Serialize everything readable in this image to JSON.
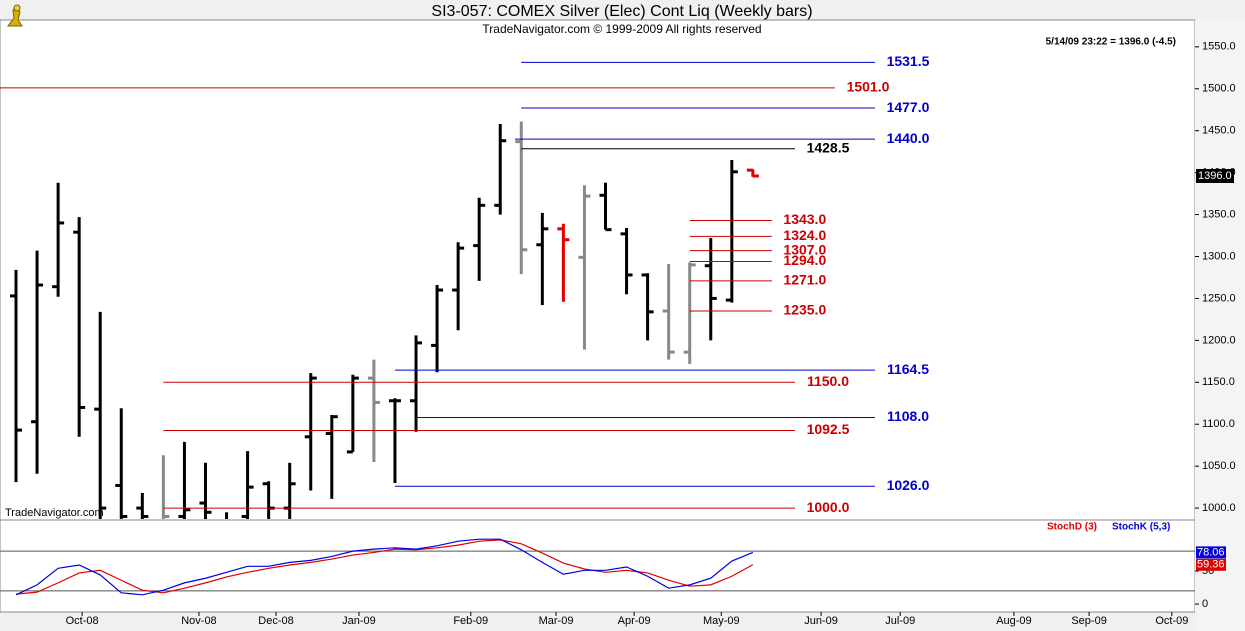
{
  "chart_data": [
    {
      "type": "ohlc",
      "title": "SI3-057:  COMEX Silver (Elec) Cont Liq  (Weekly bars)",
      "subtitle": "TradeNavigator.com © 1999-2009 All rights reserved",
      "status": "5/14/09 23:22 = 1396.0 (-4.5)",
      "watermark": "TradeNavigator.com",
      "last_price": {
        "value": 1396,
        "label": "1396.0"
      },
      "open": [
        1253,
        1103,
        1264,
        1329,
        1118,
        1027,
        1000,
        980,
        990,
        1006,
        980,
        990,
        1029,
        1000,
        1085,
        1089,
        1067,
        1155,
        1128,
        1128,
        1194,
        1260,
        1313,
        1361,
        1437,
        1314,
        1333,
        1299,
        1373,
        1327,
        1278,
        1235,
        1186,
        1289,
        1248,
        1403
      ],
      "high": [
        1284,
        1307,
        1388,
        1347,
        1234,
        1119,
        1018,
        1063,
        1079,
        1054,
        995,
        1068,
        1032,
        1054,
        1161,
        1111,
        1159,
        1177,
        1131,
        1206,
        1266,
        1317,
        1370,
        1458,
        1461,
        1352,
        1339,
        1385,
        1388,
        1334,
        1280,
        1291,
        1293,
        1322,
        1415,
        1404
      ],
      "low": [
        1031,
        1041,
        1252,
        1085,
        985,
        970,
        960,
        960,
        960,
        965,
        950,
        970,
        975,
        980,
        1021,
        1011,
        1067,
        1055,
        1030,
        1091,
        1162,
        1212,
        1271,
        1350,
        1279,
        1242,
        1246,
        1189,
        1332,
        1255,
        1200,
        1177,
        1172,
        1200,
        1245,
        1395
      ],
      "close": [
        1093,
        1266,
        1340,
        1120,
        1000,
        990,
        990,
        990,
        998,
        995,
        970,
        1025,
        1000,
        1029,
        1155,
        1109,
        1155,
        1126,
        1128,
        1197,
        1260,
        1310,
        1361,
        1438,
        1308,
        1333,
        1320,
        1372,
        1332,
        1278,
        1234,
        1186,
        1290,
        1250,
        1401,
        1396
      ],
      "colors": [
        "#000",
        "#000",
        "#000",
        "#000",
        "#000",
        "#000",
        "#000",
        "#888",
        "#000",
        "#000",
        "#000",
        "#000",
        "#000",
        "#000",
        "#000",
        "#000",
        "#000",
        "#888",
        "#000",
        "#000",
        "#000",
        "#000",
        "#000",
        "#000",
        "#888",
        "#000",
        "#e00000",
        "#888",
        "#000",
        "#000",
        "#000",
        "#888",
        "#888",
        "#000",
        "#000",
        "#e00000"
      ],
      "levels": [
        {
          "value": 1531.5,
          "label": "1531.5",
          "color": "#0000cc",
          "start": 24,
          "end": 40.8
        },
        {
          "value": 1501.0,
          "label": "1501.0",
          "color": "#cc0000",
          "start": -0.76,
          "end": 38.9
        },
        {
          "value": 1477.0,
          "label": "1477.0",
          "color": "#0000cc",
          "start": 24,
          "end": 40.8
        },
        {
          "value": 1440.0,
          "label": "1440.0",
          "color": "#0000cc",
          "start": 23.7,
          "end": 40.8
        },
        {
          "value": 1428.5,
          "label": "1428.5",
          "color": "#000000",
          "start": 24,
          "end": 37
        },
        {
          "value": 1343.0,
          "label": "1343.0",
          "color": "#cc0000",
          "start": 32,
          "end": 35.9
        },
        {
          "value": 1324.0,
          "label": "1324.0",
          "color": "#cc0000",
          "start": 32,
          "end": 35.9
        },
        {
          "value": 1307.0,
          "label": "1307.0",
          "color": "#cc0000",
          "start": 32,
          "end": 35.9
        },
        {
          "value": 1294.0,
          "label": "1294.0",
          "color": "#cc0000",
          "start": 32,
          "end": 35.9
        },
        {
          "value": 1271.0,
          "label": "1271.0",
          "color": "#cc0000",
          "start": 32,
          "end": 35.9
        },
        {
          "value": 1235.0,
          "label": "1235.0",
          "color": "#cc0000",
          "start": 32,
          "end": 35.9
        },
        {
          "value": 1164.5,
          "label": "1164.5",
          "color": "#0000cc",
          "start": 18,
          "end": 40.8
        },
        {
          "value": 1150.0,
          "label": "1150.0",
          "color": "#cc0000",
          "start": 7,
          "end": 37
        },
        {
          "value": 1108.0,
          "label": "1108.0",
          "color": "#0000cc",
          "start": 19,
          "end": 40.8
        },
        {
          "value": 1092.5,
          "label": "1092.5",
          "color": "#cc0000",
          "start": 7,
          "end": 37
        },
        {
          "value": 1026.0,
          "label": "1026.0",
          "color": "#0000cc",
          "start": 18,
          "end": 40.8
        },
        {
          "value": 1000.0,
          "label": "1000.0",
          "color": "#cc0000",
          "start": 7,
          "end": 37
        }
      ],
      "xlim": [
        -0.76,
        56.0
      ],
      "xticks": [
        {
          "value": 3.14,
          "label": "Oct-08"
        },
        {
          "value": 8.69,
          "label": "Nov-08"
        },
        {
          "value": 12.35,
          "label": "Dec-08"
        },
        {
          "value": 16.29,
          "label": "Jan-09"
        },
        {
          "value": 21.6,
          "label": "Feb-09"
        },
        {
          "value": 25.65,
          "label": "Mar-09"
        },
        {
          "value": 29.36,
          "label": "Apr-09"
        },
        {
          "value": 33.5,
          "label": "May-09"
        },
        {
          "value": 38.24,
          "label": "Jun-09"
        },
        {
          "value": 42,
          "label": "Jul-09"
        },
        {
          "value": 47.4,
          "label": "Aug-09"
        },
        {
          "value": 50.97,
          "label": "Sep-09"
        },
        {
          "value": 54.9,
          "label": "Oct-09"
        }
      ],
      "ylim": [
        987,
        1582
      ],
      "yticks": [
        {
          "value": 1000,
          "label": "1000.0"
        },
        {
          "value": 1050,
          "label": "1050.0"
        },
        {
          "value": 1100,
          "label": "1100.0"
        },
        {
          "value": 1150,
          "label": "1150.0"
        },
        {
          "value": 1200,
          "label": "1200.0"
        },
        {
          "value": 1250,
          "label": "1250.0"
        },
        {
          "value": 1300,
          "label": "1300.0"
        },
        {
          "value": 1350,
          "label": "1350.0"
        },
        {
          "value": 1400,
          "label": "1400.0"
        },
        {
          "value": 1450,
          "label": "1450.0"
        },
        {
          "value": 1500,
          "label": "1500.0"
        },
        {
          "value": 1550,
          "label": "1550.0"
        }
      ]
    },
    {
      "type": "line",
      "ylim": [
        -12,
        127
      ],
      "yticks": [
        0,
        50
      ],
      "guides": [
        20,
        80
      ],
      "series": [
        {
          "name": "StochD (3)",
          "color": "#e00000",
          "values": [
            15,
            18,
            32,
            47,
            51,
            36,
            21,
            17,
            24,
            32,
            41,
            48,
            54,
            59,
            63,
            68,
            74,
            78,
            83,
            82,
            85,
            89,
            95,
            97,
            91,
            77,
            62,
            53,
            48,
            51,
            47,
            36,
            27,
            29,
            42,
            59.36
          ]
        },
        {
          "name": "StochK (5,3)",
          "color": "#0000e0",
          "values": [
            14,
            29,
            54,
            59,
            44,
            17,
            14,
            21,
            32,
            39,
            48,
            57,
            57,
            63,
            66,
            72,
            80,
            83,
            85,
            83,
            88,
            95,
            98,
            98,
            82,
            63,
            45,
            51,
            51,
            56,
            42,
            24,
            29,
            39,
            65,
            78.06
          ]
        }
      ]
    }
  ]
}
